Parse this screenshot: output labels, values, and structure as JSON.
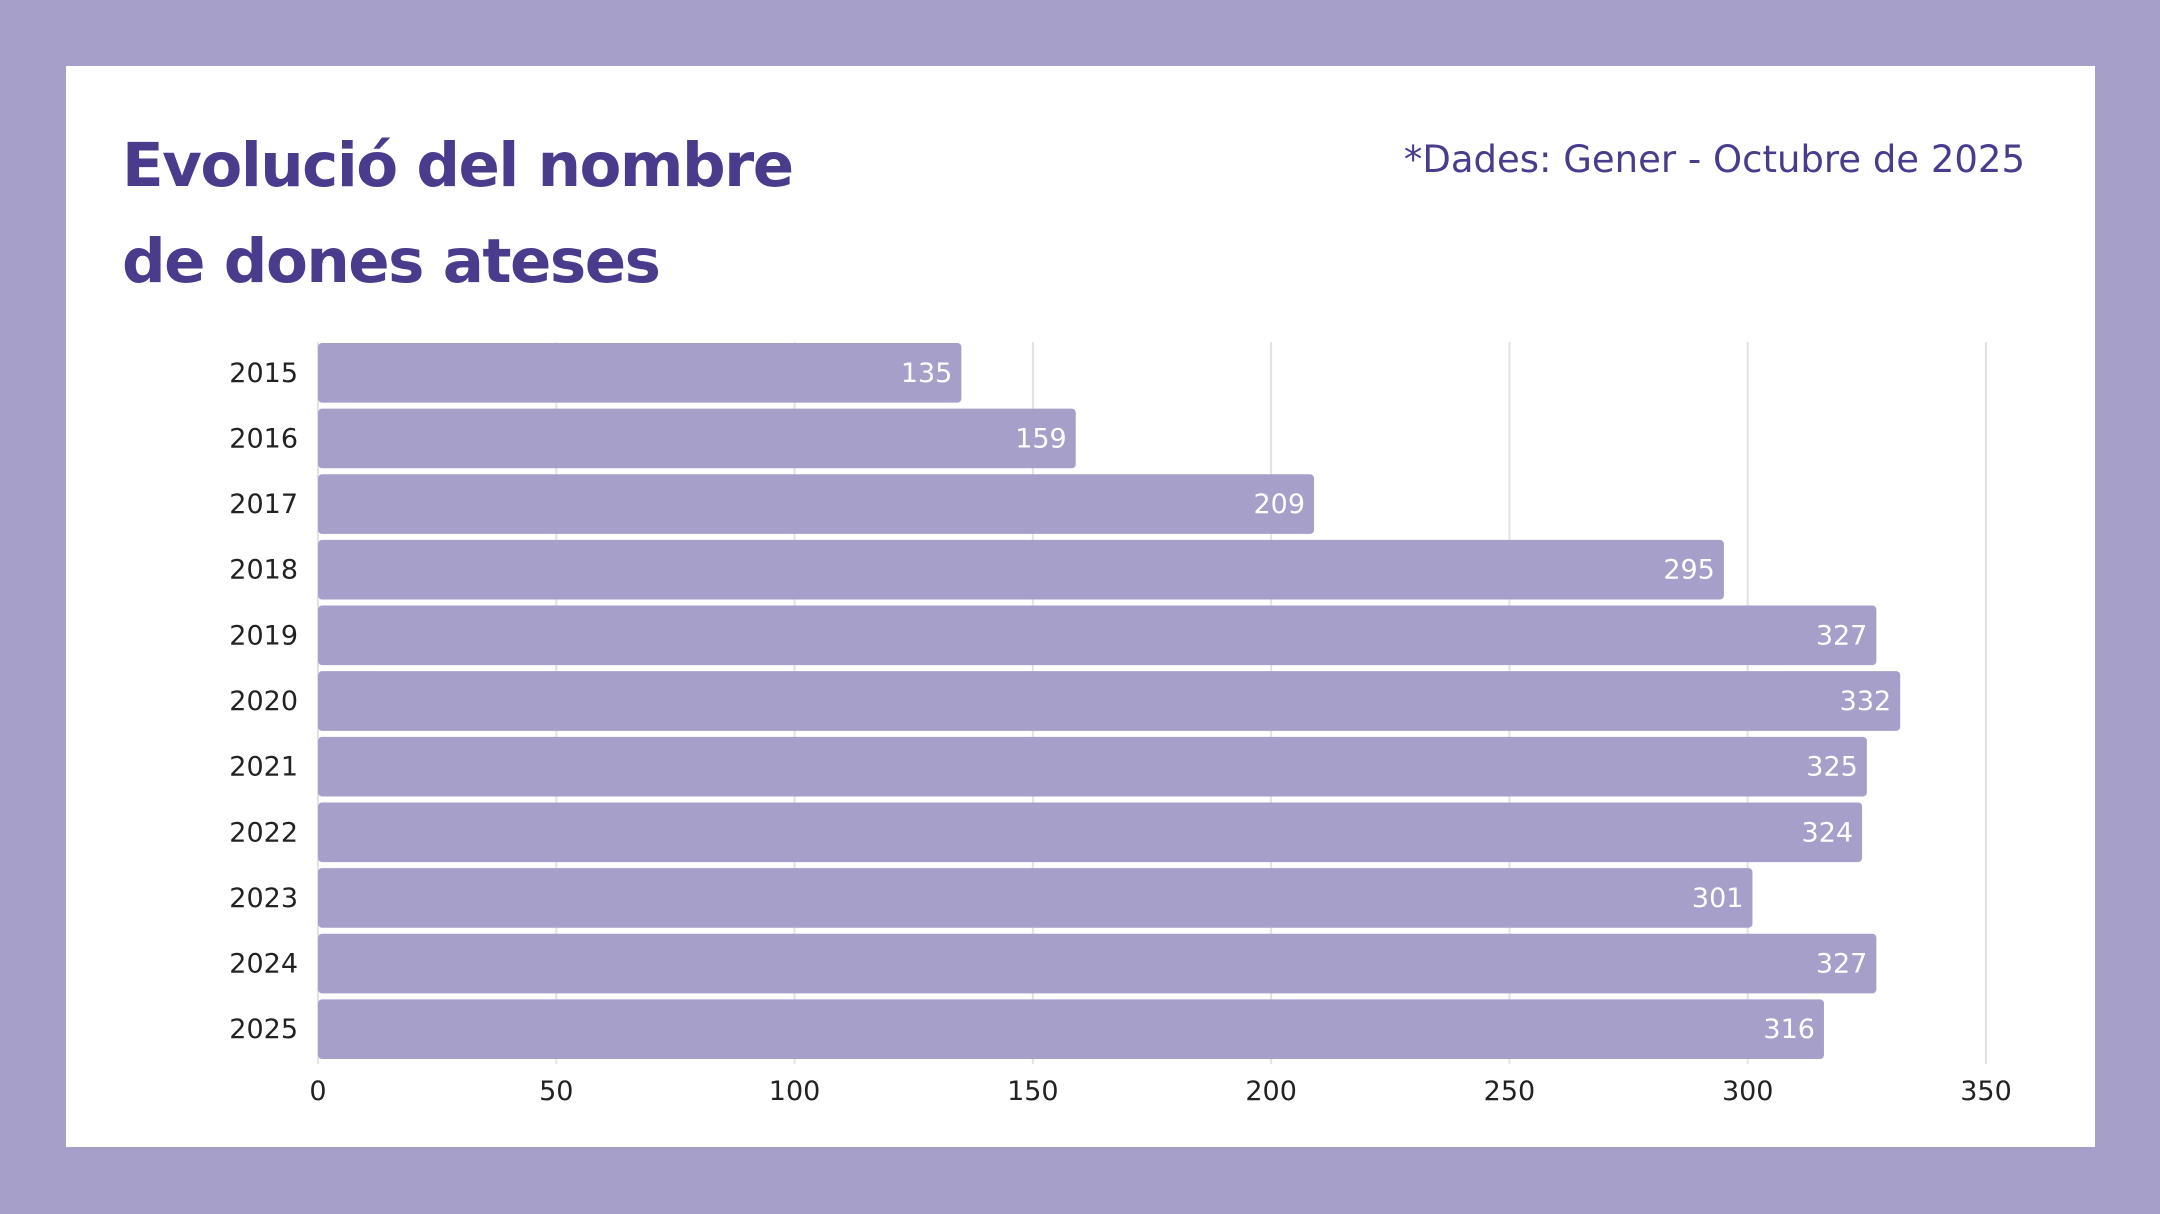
{
  "title_lines": [
    "Evolució del nombre",
    "de dones ateses"
  ],
  "note": "*Dades: Gener - Octubre de 2025",
  "chart_data": {
    "type": "bar",
    "orientation": "horizontal",
    "title": "Evolució del nombre de dones ateses",
    "subtitle": "*Dades: Gener - Octubre de 2025",
    "categories": [
      "2015",
      "2016",
      "2017",
      "2018",
      "2019",
      "2020",
      "2021",
      "2022",
      "2023",
      "2024",
      "2025"
    ],
    "values": [
      135,
      159,
      209,
      295,
      327,
      332,
      325,
      324,
      301,
      327,
      316
    ],
    "xlabel": "",
    "ylabel": "",
    "xlim": [
      0,
      350
    ],
    "xticks": [
      0,
      50,
      100,
      150,
      200,
      250,
      300,
      350
    ],
    "grid": true,
    "data_labels": true,
    "legend": "none"
  },
  "colors": {
    "background": "#a59fca",
    "card": "#ffffff",
    "bar": "#a59fca",
    "title": "#4b3b8c",
    "grid": "#e2e2e2",
    "axis_text": "#222222",
    "data_label": "#ffffff"
  }
}
